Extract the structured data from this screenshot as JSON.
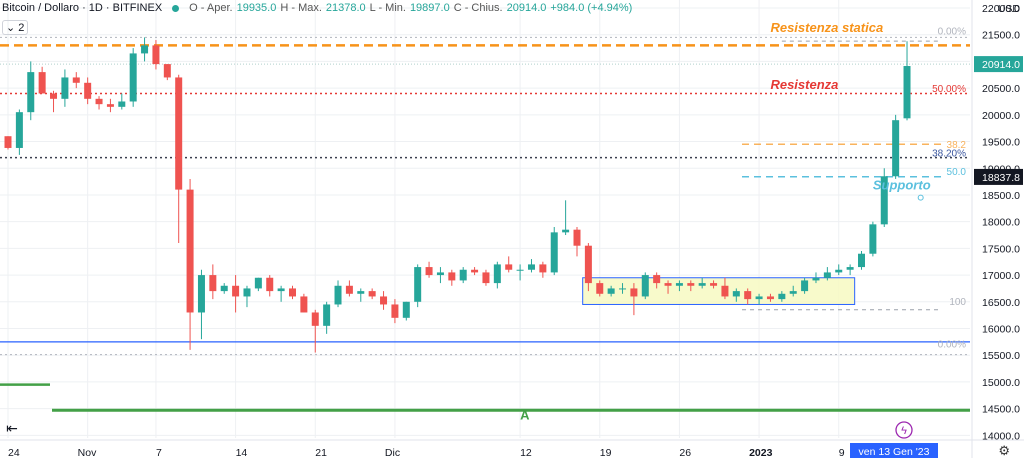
{
  "header": {
    "symbol": "Bitcoin / Dollaro · 1D · BITFINEX",
    "o_label": "O - Aper.",
    "o_val": "19935.0",
    "h_label": "H - Max.",
    "h_val": "21378.0",
    "l_label": "L - Min.",
    "l_val": "19897.0",
    "c_label": "C - Chius.",
    "c_val": "20914.0",
    "change": "+984.0 (+4.94%)",
    "indicator_count": "2"
  },
  "colors": {
    "up": "#26a69a",
    "down": "#ef5350",
    "orange": "#f7931a",
    "red": "#e53935",
    "blue": "#2962ff",
    "green": "#43a047",
    "cyan": "#5bc0de"
  },
  "chart_data": {
    "type": "candlestick",
    "currency": "USD",
    "y_ticks": [
      14000,
      14500,
      15000,
      15500,
      16000,
      16500,
      17000,
      17500,
      18000,
      18500,
      19000,
      19500,
      20000,
      20500,
      21000,
      21500,
      22000
    ],
    "ylim": [
      13950,
      22150
    ],
    "x_ticks": [
      {
        "i": 0,
        "label": "24"
      },
      {
        "i": 7,
        "label": "Nov"
      },
      {
        "i": 13,
        "label": "7"
      },
      {
        "i": 20,
        "label": "14"
      },
      {
        "i": 27,
        "label": "21"
      },
      {
        "i": 34,
        "label": "Dic"
      },
      {
        "i": 45,
        "label": "12"
      },
      {
        "i": 52,
        "label": "19"
      },
      {
        "i": 59,
        "label": "26"
      },
      {
        "i": 66,
        "label": "2023"
      },
      {
        "i": 73,
        "label": "9"
      }
    ],
    "current_price": "20914.0",
    "crosshair_price": "18837.8",
    "crosshair_date": "ven 13 Gen '23",
    "annotations": [
      {
        "text": "Resistenza statica",
        "price": 21550,
        "i": 67,
        "color": "#f7931a"
      },
      {
        "text": "Resistenza",
        "price": 20480,
        "i": 67,
        "color": "#e53935"
      },
      {
        "text": "Supporto",
        "price": 18600,
        "i": 76,
        "color": "#5bc0de"
      },
      {
        "text": "A",
        "price": 14300,
        "i": 45,
        "color": "#43a047"
      }
    ],
    "fib_labels": [
      {
        "text": "0.00%",
        "price": 21500
      },
      {
        "text": "50.00%",
        "price": 20430
      },
      {
        "text": "38.20%",
        "price": 19220
      },
      {
        "text": "0.00%",
        "price": 15640
      }
    ],
    "candles": [
      [
        19600,
        19600,
        19350,
        19380
      ],
      [
        19380,
        20100,
        19250,
        20050
      ],
      [
        20050,
        21000,
        19900,
        20800
      ],
      [
        20800,
        20900,
        20400,
        20400
      ],
      [
        20400,
        20450,
        20050,
        20300
      ],
      [
        20300,
        20850,
        20150,
        20700
      ],
      [
        20700,
        20800,
        20500,
        20600
      ],
      [
        20600,
        20700,
        20200,
        20300
      ],
      [
        20300,
        20350,
        20100,
        20200
      ],
      [
        20200,
        20300,
        20050,
        20150
      ],
      [
        20150,
        20400,
        20100,
        20250
      ],
      [
        20250,
        21250,
        20150,
        21150
      ],
      [
        21150,
        21450,
        21000,
        21300
      ],
      [
        21300,
        21400,
        20850,
        20950
      ],
      [
        20950,
        20950,
        20650,
        20700
      ],
      [
        20700,
        20750,
        17600,
        18600
      ],
      [
        18600,
        18800,
        15600,
        16300
      ],
      [
        16300,
        17100,
        15800,
        17000
      ],
      [
        17000,
        17200,
        16550,
        16700
      ],
      [
        16700,
        16850,
        16650,
        16800
      ],
      [
        16800,
        17000,
        16300,
        16600
      ],
      [
        16600,
        16800,
        16400,
        16750
      ],
      [
        16750,
        16950,
        16700,
        16950
      ],
      [
        16950,
        17000,
        16600,
        16700
      ],
      [
        16700,
        16800,
        16500,
        16750
      ],
      [
        16750,
        16800,
        16550,
        16600
      ],
      [
        16600,
        16650,
        16300,
        16300
      ],
      [
        16300,
        16350,
        15550,
        16050
      ],
      [
        16050,
        16500,
        15900,
        16450
      ],
      [
        16450,
        16900,
        16400,
        16800
      ],
      [
        16800,
        16900,
        16600,
        16650
      ],
      [
        16650,
        16750,
        16500,
        16700
      ],
      [
        16700,
        16750,
        16550,
        16600
      ],
      [
        16600,
        16700,
        16350,
        16450
      ],
      [
        16450,
        16550,
        16100,
        16200
      ],
      [
        16200,
        16500,
        16150,
        16500
      ],
      [
        16500,
        17200,
        16400,
        17150
      ],
      [
        17150,
        17250,
        16950,
        17000
      ],
      [
        17000,
        17150,
        16850,
        17050
      ],
      [
        17050,
        17100,
        16800,
        16900
      ],
      [
        16900,
        17150,
        16850,
        17100
      ],
      [
        17100,
        17150,
        17000,
        17050
      ],
      [
        17050,
        17100,
        16800,
        16850
      ],
      [
        16850,
        17250,
        16750,
        17200
      ],
      [
        17200,
        17350,
        17050,
        17100
      ],
      [
        17100,
        17200,
        16900,
        17100
      ],
      [
        17100,
        17300,
        17050,
        17200
      ],
      [
        17200,
        17250,
        16950,
        17050
      ],
      [
        17050,
        17900,
        17000,
        17800
      ],
      [
        17800,
        18400,
        17750,
        17850
      ],
      [
        17850,
        17900,
        17350,
        17550
      ],
      [
        17550,
        17600,
        16700,
        16850
      ],
      [
        16850,
        16900,
        16600,
        16650
      ],
      [
        16650,
        16800,
        16600,
        16750
      ],
      [
        16750,
        16850,
        16650,
        16750
      ],
      [
        16750,
        16850,
        16250,
        16600
      ],
      [
        16600,
        17050,
        16550,
        17000
      ],
      [
        17000,
        17050,
        16750,
        16850
      ],
      [
        16850,
        16900,
        16650,
        16800
      ],
      [
        16800,
        16900,
        16700,
        16850
      ],
      [
        16850,
        16900,
        16700,
        16800
      ],
      [
        16800,
        16950,
        16750,
        16850
      ],
      [
        16850,
        16900,
        16750,
        16800
      ],
      [
        16800,
        16950,
        16550,
        16600
      ],
      [
        16600,
        16750,
        16500,
        16700
      ],
      [
        16700,
        16750,
        16450,
        16550
      ],
      [
        16550,
        16650,
        16450,
        16600
      ],
      [
        16600,
        16650,
        16500,
        16550
      ],
      [
        16550,
        16700,
        16500,
        16650
      ],
      [
        16650,
        16800,
        16600,
        16700
      ],
      [
        16700,
        16950,
        16650,
        16900
      ],
      [
        16900,
        17050,
        16850,
        16950
      ],
      [
        16950,
        17150,
        16900,
        17050
      ],
      [
        17050,
        17200,
        17000,
        17100
      ],
      [
        17100,
        17200,
        17000,
        17150
      ],
      [
        17150,
        17450,
        17100,
        17400
      ],
      [
        17400,
        18000,
        17350,
        17950
      ],
      [
        17950,
        19000,
        17900,
        18850
      ],
      [
        18850,
        20000,
        18800,
        19900
      ],
      [
        19935,
        21378,
        19897,
        20914
      ]
    ]
  }
}
